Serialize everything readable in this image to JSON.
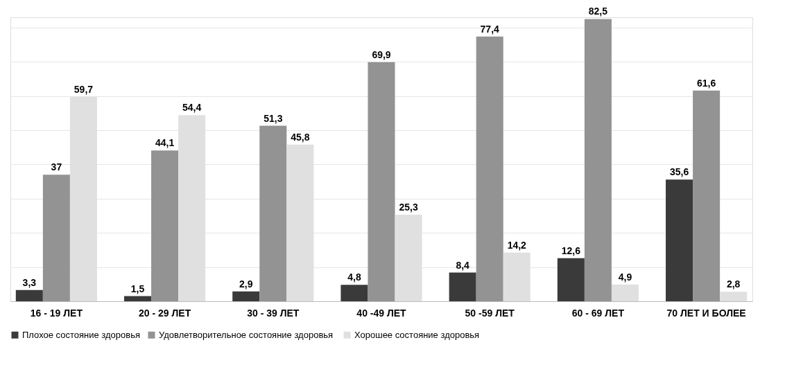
{
  "chart_data": {
    "type": "bar",
    "categories": [
      "16 - 19 ЛЕТ",
      "20 - 29 ЛЕТ",
      "30 - 39 ЛЕТ",
      "40 -49 ЛЕТ",
      "50 -59 ЛЕТ",
      "60 - 69 ЛЕТ",
      "70 ЛЕТ И БОЛЕЕ"
    ],
    "series": [
      {
        "name": "Плохое состояние здоровья",
        "color": "#3a3a3a",
        "values": [
          3.3,
          1.5,
          2.9,
          4.8,
          8.4,
          12.6,
          35.6
        ],
        "value_labels": [
          "3,3",
          "1,5",
          "2,9",
          "4,8",
          "8,4",
          "12,6",
          "35,6"
        ]
      },
      {
        "name": "Удовлетворительное  состояние здоровья",
        "color": "#939393",
        "values": [
          37,
          44.1,
          51.3,
          69.9,
          77.4,
          82.5,
          61.6
        ],
        "value_labels": [
          "37",
          "44,1",
          "51,3",
          "69,9",
          "77,4",
          "82,5",
          "61,6"
        ]
      },
      {
        "name": "Хорошее состояние здоровья",
        "color": "#e0e0e0",
        "values": [
          59.7,
          54.4,
          45.8,
          25.3,
          14.2,
          4.9,
          2.8
        ],
        "value_labels": [
          "59,7",
          "54,4",
          "45,8",
          "25,3",
          "14,2",
          "4,9",
          "2,8"
        ]
      }
    ],
    "ylim": [
      0,
      83
    ],
    "yticks": [
      {
        "value": 0,
        "label": null
      },
      {
        "value": 10,
        "label": null
      },
      {
        "value": 20,
        "label": null
      },
      {
        "value": 30,
        "label": null
      },
      {
        "value": 40,
        "label": null
      },
      {
        "value": 50,
        "label": null
      },
      {
        "value": 60,
        "label": null
      },
      {
        "value": 70,
        "label": null
      },
      {
        "value": 80,
        "label": null
      }
    ],
    "grid": "y",
    "tick_labels": "x",
    "legend": "bottom"
  }
}
